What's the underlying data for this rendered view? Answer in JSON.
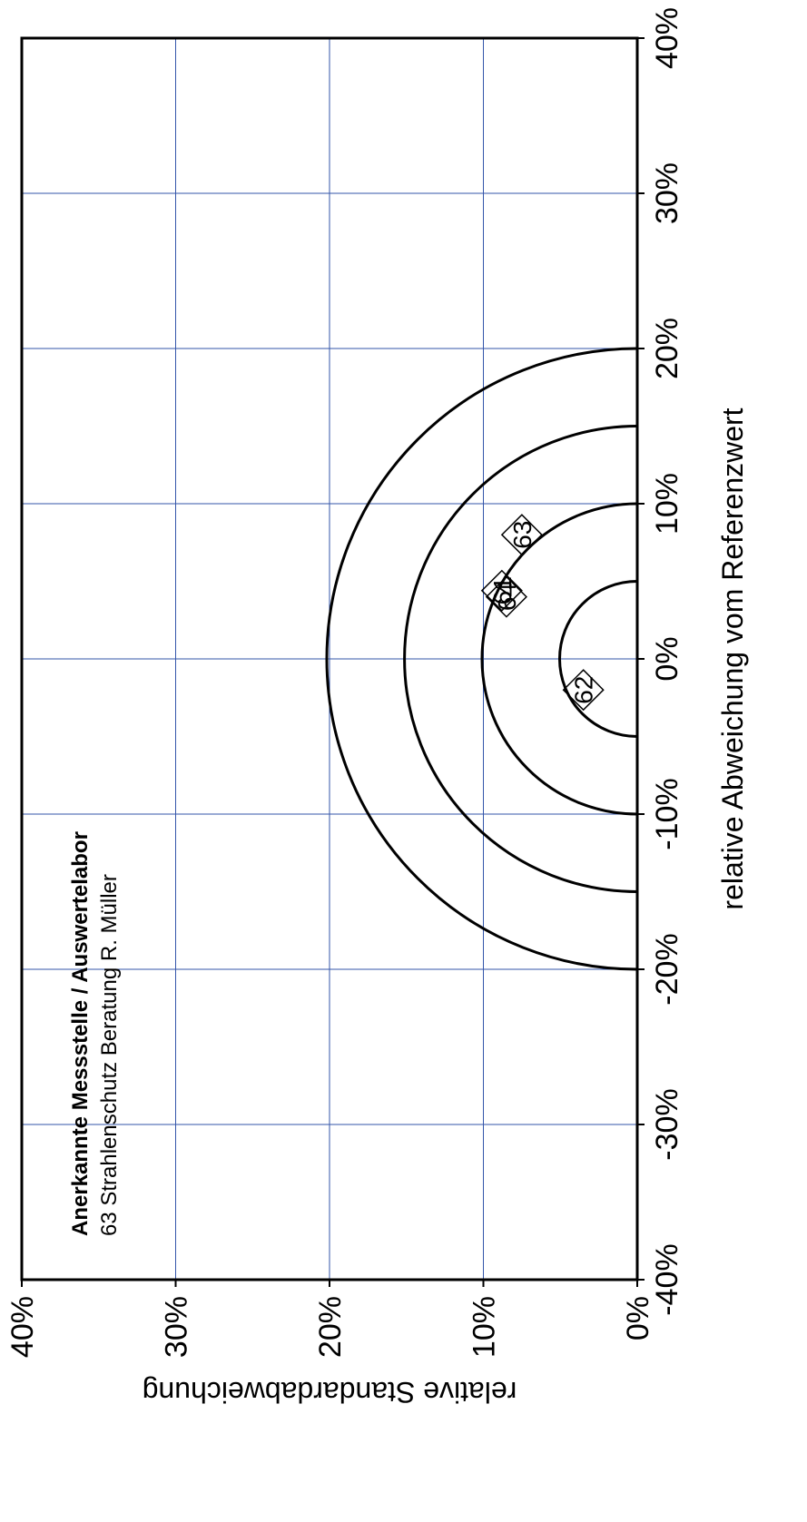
{
  "chart_data": {
    "type": "scatter",
    "xlabel": "relative Abweichung vom Referenzwert",
    "ylabel": "relative Standardabweichung",
    "xlim": [
      -0.4,
      0.4
    ],
    "ylim": [
      0,
      0.4
    ],
    "x_ticks": [
      "-40%",
      "-30%",
      "-20%",
      "-10%",
      "0%",
      "10%",
      "20%",
      "30%",
      "40%"
    ],
    "y_ticks": [
      "0%",
      "10%",
      "20%",
      "30%",
      "40%"
    ],
    "grid": true,
    "grid_color": "#3355aa",
    "circle_radii": [
      0.05,
      0.1,
      0.15,
      0.2
    ],
    "points": [
      {
        "label": "61",
        "x": 0.044,
        "y": 0.088
      },
      {
        "label": "64",
        "x": 0.04,
        "y": 0.085
      },
      {
        "label": "63",
        "x": 0.08,
        "y": 0.075
      },
      {
        "label": "62",
        "x": -0.02,
        "y": 0.035
      }
    ],
    "annotation": {
      "title": "Anerkannte Messstelle / Auswertelabor",
      "line": "63   Strahlenschutz Beratung R. Müller"
    }
  }
}
